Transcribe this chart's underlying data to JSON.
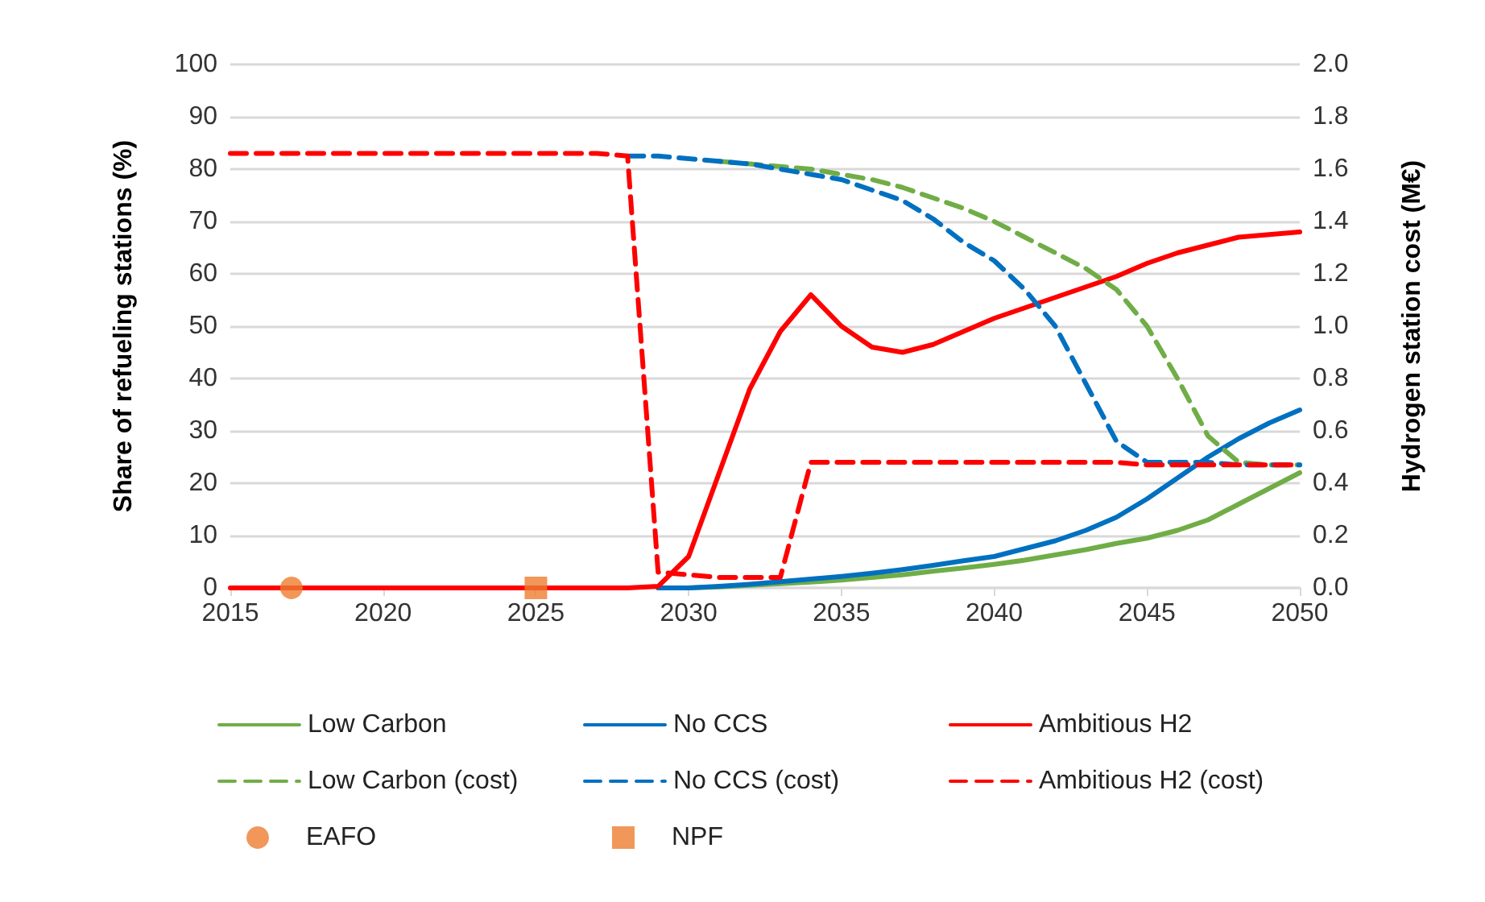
{
  "chart_data": {
    "type": "line",
    "ylabel": "Share of refueling stations (%)",
    "y2label": "Hydrogen station cost (M€)",
    "x": [
      2015,
      2016,
      2017,
      2018,
      2019,
      2020,
      2021,
      2022,
      2023,
      2024,
      2025,
      2026,
      2027,
      2028,
      2029,
      2030,
      2031,
      2032,
      2033,
      2034,
      2035,
      2036,
      2037,
      2038,
      2039,
      2040,
      2041,
      2042,
      2043,
      2044,
      2045,
      2046,
      2047,
      2048,
      2049,
      2050
    ],
    "xlim": [
      2015,
      2050
    ],
    "xticks": [
      2015,
      2020,
      2025,
      2030,
      2035,
      2040,
      2045,
      2050
    ],
    "ylim": [
      0,
      100
    ],
    "yticks": [
      0,
      10,
      20,
      30,
      40,
      50,
      60,
      70,
      80,
      90,
      100
    ],
    "y2lim": [
      0,
      2
    ],
    "y2ticks": [
      {
        "value": 0,
        "label": "0.0"
      },
      0.2,
      0.4,
      0.6,
      0.8,
      {
        "value": 1,
        "label": "1.0"
      },
      1.2,
      1.4,
      1.6,
      1.8,
      {
        "value": 2,
        "label": "2.0"
      }
    ],
    "grid": "y",
    "legend": "bottom",
    "marker": "none",
    "series": [
      {
        "name": "Low Carbon",
        "color": "#70ad47",
        "line_style": "solid",
        "values": [
          null,
          null,
          null,
          null,
          null,
          null,
          null,
          null,
          null,
          null,
          null,
          null,
          null,
          null,
          0,
          0,
          0.2,
          0.5,
          0.8,
          1.1,
          1.5,
          2,
          2.5,
          3.2,
          3.8,
          4.5,
          5.3,
          6.3,
          7.3,
          8.5,
          9.5,
          11,
          13,
          16,
          19,
          22
        ]
      },
      {
        "name": "No CCS",
        "color": "#0070c0",
        "line_style": "solid",
        "values": [
          null,
          null,
          null,
          null,
          null,
          null,
          null,
          null,
          null,
          null,
          null,
          null,
          null,
          null,
          0,
          0,
          0.3,
          0.7,
          1.2,
          1.7,
          2.2,
          2.8,
          3.5,
          4.3,
          5.2,
          6,
          7.5,
          9,
          11,
          13.5,
          17,
          21,
          25,
          28.5,
          31.5,
          34
        ]
      },
      {
        "name": "Ambitious H2",
        "color": "#ff0000",
        "line_style": "solid",
        "values": [
          0,
          0,
          0,
          0,
          0,
          0,
          0,
          0,
          0,
          0,
          0,
          0,
          0,
          0,
          0.3,
          6,
          22,
          38,
          49,
          56,
          50,
          46,
          45,
          46.5,
          49,
          51.5,
          53.5,
          55.5,
          57.5,
          59.5,
          62,
          64,
          65.5,
          67,
          67.5,
          68
        ]
      },
      {
        "name": "Low Carbon (cost)",
        "color": "#70ad47",
        "line_style": "dashed",
        "axis": "y2",
        "values": [
          null,
          null,
          null,
          null,
          null,
          null,
          null,
          null,
          null,
          null,
          null,
          null,
          null,
          null,
          null,
          null,
          1.63,
          1.62,
          1.61,
          1.6,
          1.58,
          1.56,
          1.53,
          1.49,
          1.45,
          1.4,
          1.34,
          1.28,
          1.22,
          1.14,
          1.0,
          0.8,
          0.58,
          0.48,
          0.47,
          0.47
        ]
      },
      {
        "name": "No CCS (cost)",
        "color": "#0070c0",
        "line_style": "dashed",
        "axis": "y2",
        "values": [
          null,
          null,
          null,
          null,
          null,
          null,
          null,
          null,
          null,
          null,
          null,
          null,
          null,
          1.65,
          1.65,
          1.64,
          1.63,
          1.62,
          1.6,
          1.58,
          1.56,
          1.52,
          1.48,
          1.41,
          1.32,
          1.25,
          1.14,
          1.0,
          0.78,
          0.56,
          0.48,
          0.48,
          0.48,
          0.47,
          0.47,
          0.47
        ]
      },
      {
        "name": "Ambitious H2 (cost)",
        "color": "#ff0000",
        "line_style": "dashed",
        "axis": "y2",
        "values": [
          1.66,
          1.66,
          1.66,
          1.66,
          1.66,
          1.66,
          1.66,
          1.66,
          1.66,
          1.66,
          1.66,
          1.66,
          1.66,
          1.65,
          0.06,
          0.05,
          0.04,
          0.04,
          0.04,
          0.48,
          0.48,
          0.48,
          0.48,
          0.48,
          0.48,
          0.48,
          0.48,
          0.48,
          0.48,
          0.48,
          0.47,
          0.47,
          0.47,
          0.47,
          0.47,
          0.47
        ]
      },
      {
        "name": "EAFO",
        "type": "scatter",
        "marker": "circle",
        "color": "#ed7d31",
        "x": [
          2017
        ],
        "values": [
          0
        ]
      },
      {
        "name": "NPF",
        "type": "scatter",
        "marker": "square",
        "color": "#ed7d31",
        "x": [
          2025
        ],
        "values": [
          0
        ]
      }
    ]
  }
}
